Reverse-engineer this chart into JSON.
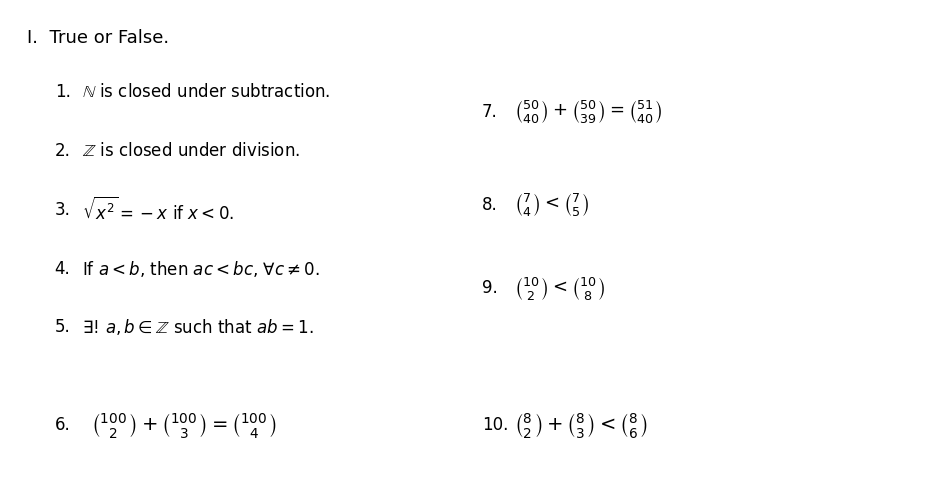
{
  "title": "I.  True or False.",
  "background_color": "#ffffff",
  "text_color": "#000000",
  "figsize": [
    9.27,
    4.98
  ],
  "dpi": 100,
  "left_items": [
    {
      "num": "1.",
      "text": "$\\mathbb{N}$ is closed under subtraction."
    },
    {
      "num": "2.",
      "text": "$\\mathbb{Z}$ is closed under division."
    },
    {
      "num": "3.",
      "text": "$\\sqrt{x^2} = -x$ if $x < 0$."
    },
    {
      "num": "4.",
      "text": "If $a < b$, then $ac < bc$, $\\forall c \\neq 0$."
    },
    {
      "num": "5.",
      "text": "$\\exists!\\, a, b \\in \\mathbb{Z}$ such that $ab = 1$."
    }
  ],
  "item6": {
    "num": "6.",
    "expr": "$\\binom{100}{2} + \\binom{100}{3} = \\binom{100}{4}$"
  },
  "right_items": [
    {
      "num": "7.",
      "expr": "$\\binom{50}{40} + \\binom{50}{39} = \\binom{51}{40}$"
    },
    {
      "num": "8.",
      "expr": "$\\binom{7}{4} < \\binom{7}{5}$"
    },
    {
      "num": "9.",
      "expr": "$\\binom{10}{2} < \\binom{10}{8}$"
    },
    {
      "num": "10.",
      "expr": "$\\binom{8}{2} + \\binom{8}{3} < \\binom{8}{6}$"
    }
  ]
}
